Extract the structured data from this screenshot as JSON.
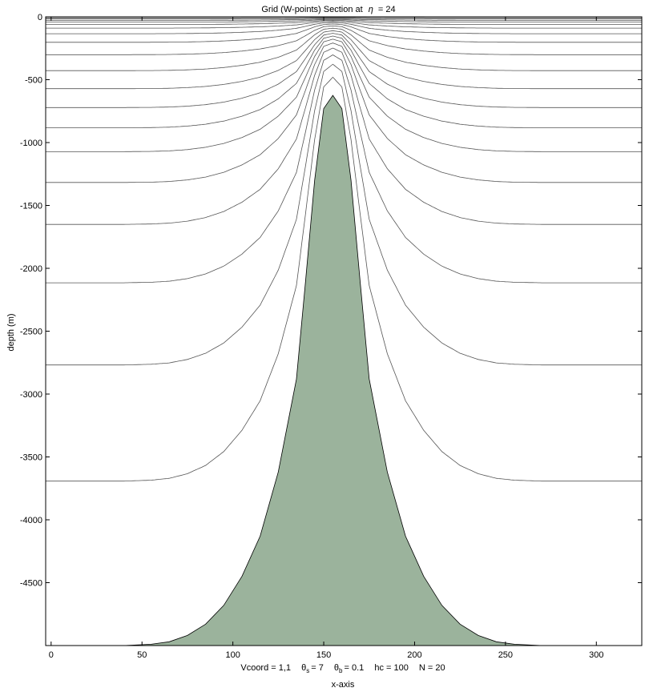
{
  "chart_data": {
    "type": "area",
    "title_prefix": "Grid (W-points) Section at",
    "title_symbol": "η",
    "title_suffix": "= 24",
    "xlabel": "x-axis",
    "ylabel": "depth  (m)",
    "xlim": [
      -3,
      325
    ],
    "ylim": [
      -5000,
      0
    ],
    "xticks": [
      0,
      50,
      100,
      150,
      200,
      250,
      300
    ],
    "yticks": [
      0,
      -500,
      -1000,
      -1500,
      -2000,
      -2500,
      -3000,
      -3500,
      -4000,
      -4500
    ],
    "grid": false,
    "bathymetry": {
      "x": [
        -3,
        40,
        55,
        65,
        75,
        85,
        95,
        105,
        115,
        125,
        135,
        140,
        145,
        150,
        155,
        160,
        165,
        170,
        175,
        185,
        195,
        205,
        215,
        225,
        235,
        245,
        255,
        270,
        325
      ],
      "depth": [
        5000,
        5000,
        4990,
        4970,
        4920,
        4830,
        4680,
        4450,
        4130,
        3620,
        2880,
        2100,
        1300,
        730,
        625,
        730,
        1300,
        2100,
        2880,
        3620,
        4130,
        4450,
        4680,
        4830,
        4920,
        4970,
        4990,
        5000,
        5000
      ],
      "fill_color": "#9bb39c",
      "edge_color": "#000000"
    },
    "n_levels": 20,
    "theta_s": 7,
    "theta_b": 0.1,
    "hc": 100,
    "line_color": "#555555"
  },
  "info": {
    "vcoord": "Vcoord = 1,1",
    "theta_s_label": "θ",
    "theta_s_sub": "s",
    "theta_s_value": "= 7",
    "theta_b_label": "θ",
    "theta_b_sub": "b",
    "theta_b_value": "= 0.1",
    "hc": "hc  = 100",
    "n": "N = 20"
  }
}
